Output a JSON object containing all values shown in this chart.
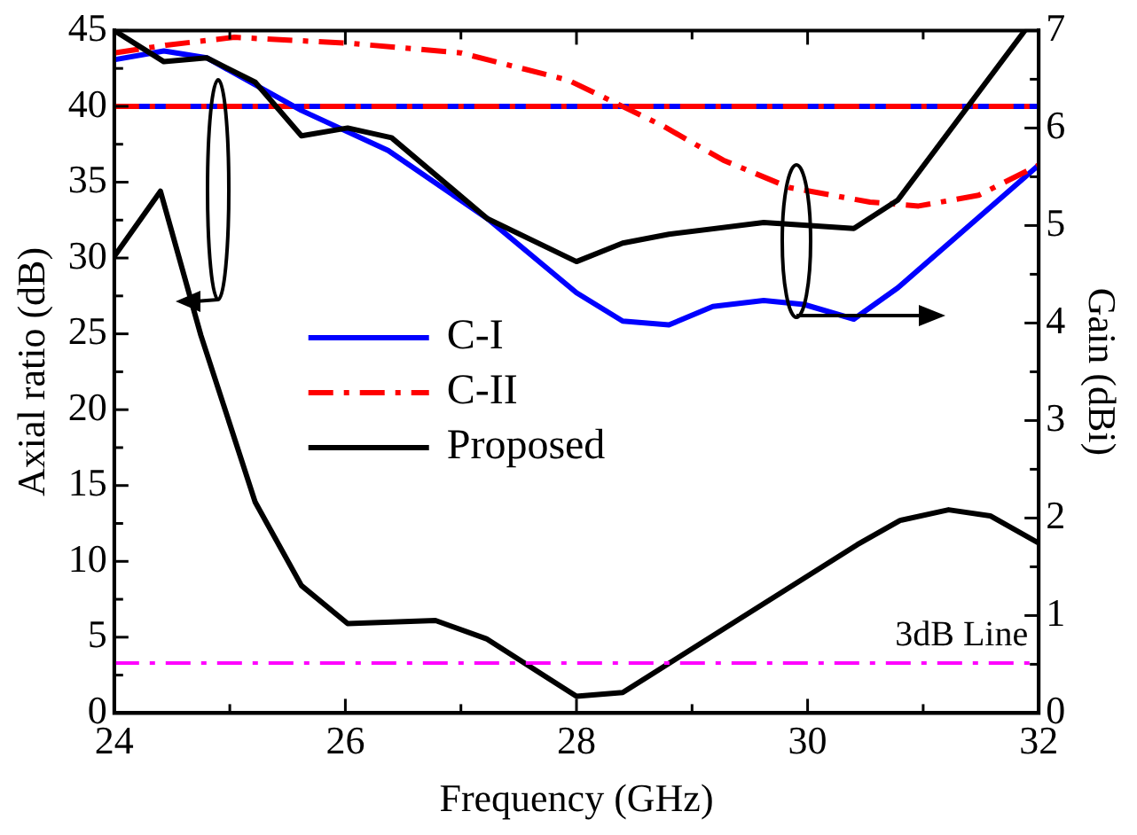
{
  "chart_data": {
    "type": "line",
    "xlabel": "Frequency (GHz)",
    "ylabel": "Axial ratio (dB)",
    "y2label": "Gain (dBi)",
    "xlim": [
      24,
      32
    ],
    "xticks": [
      24,
      26,
      28,
      30,
      32
    ],
    "ylim": [
      0,
      45
    ],
    "yticks": [
      0,
      5,
      10,
      15,
      20,
      25,
      30,
      35,
      40,
      45
    ],
    "y2lim": [
      0,
      7
    ],
    "y2ticks": [
      0,
      1,
      2,
      3,
      4,
      5,
      6,
      7
    ],
    "grid": false,
    "legend": "center",
    "marker": "none",
    "ref_lines": [
      {
        "axis": "y",
        "value": 3.3,
        "label": "3dB Line",
        "color": "#ff00ff",
        "line_style": "dashed"
      }
    ],
    "series": [
      {
        "color": "#0000ff",
        "line_style": "solid",
        "x": [
          24,
          32
        ],
        "values": [
          40,
          40
        ]
      },
      {
        "color": "#ff0000",
        "line_style": "dashed",
        "x": [
          24,
          32
        ],
        "values": [
          40,
          40
        ]
      },
      {
        "color": "#000000",
        "line_style": "solid",
        "x": [
          24,
          24.4,
          24.75,
          25.22,
          25.62,
          26.02,
          26.78,
          27.22,
          28.0,
          28.4,
          30.43,
          30.8,
          31.22,
          31.58,
          32
        ],
        "values": [
          30.1,
          34.4,
          24.9,
          13.9,
          8.4,
          5.9,
          6.1,
          4.9,
          1.1,
          1.35,
          11.1,
          12.7,
          13.4,
          13.0,
          11.2
        ]
      },
      {
        "name": "C-I",
        "color": "#0000ff",
        "line_style": "solid",
        "axis": "y2",
        "x": [
          24,
          24.43,
          24.8,
          25.62,
          26.37,
          27.23,
          28.0,
          28.4,
          28.8,
          29.18,
          29.62,
          29.97,
          30.4,
          30.78,
          32
        ],
        "values": [
          6.7,
          6.79,
          6.72,
          6.18,
          5.77,
          5.07,
          4.31,
          4.02,
          3.98,
          4.17,
          4.23,
          4.19,
          4.04,
          4.36,
          5.62
        ]
      },
      {
        "name": "C-II",
        "color": "#ff0000",
        "line_style": "dashed",
        "axis": "y2",
        "x": [
          24,
          24.45,
          25.04,
          26.02,
          27.0,
          27.93,
          28.75,
          29.27,
          29.84,
          30.54,
          30.96,
          31.48,
          32
        ],
        "values": [
          6.77,
          6.85,
          6.93,
          6.87,
          6.77,
          6.49,
          6.02,
          5.67,
          5.39,
          5.24,
          5.2,
          5.31,
          5.62
        ]
      },
      {
        "name": "Proposed",
        "color": "#000000",
        "line_style": "solid",
        "axis": "y2",
        "x": [
          24,
          24.43,
          24.8,
          25.22,
          25.62,
          26.02,
          26.4,
          27.23,
          28.0,
          28.4,
          28.8,
          29.62,
          30.4,
          30.78,
          31.88
        ],
        "values": [
          7.0,
          6.68,
          6.72,
          6.47,
          5.92,
          6.0,
          5.9,
          5.07,
          4.63,
          4.82,
          4.91,
          5.03,
          4.97,
          5.26,
          7.0
        ]
      }
    ]
  }
}
